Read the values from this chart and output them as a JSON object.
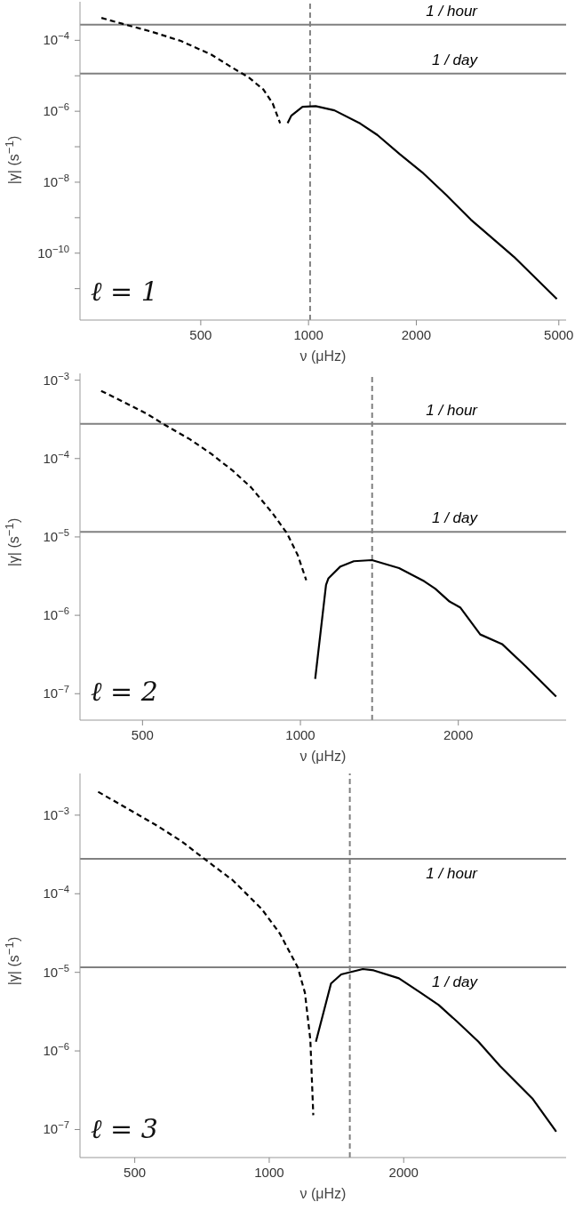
{
  "chart_data": [
    {
      "type": "line",
      "xlabel": "ν (μHz)",
      "ylabel": "|γ| (s$^{−1}$)",
      "log": "xy",
      "marker": "none",
      "xlim": [
        230,
        5240
      ],
      "ylim": [
        1.3e-12,
        0.00122
      ],
      "xticks": [
        500,
        1000,
        2000,
        5000
      ],
      "yticks": [
        {
          "value": 0.0001,
          "label": "10$^{−4}$"
        },
        {
          "value": 1e-05,
          "label": null
        },
        {
          "value": 1e-06,
          "label": "10$^{−6}$"
        },
        {
          "value": 1e-07,
          "label": null
        },
        {
          "value": 1e-08,
          "label": "10$^{−8}$"
        },
        {
          "value": 1e-09,
          "label": null
        },
        {
          "value": 1e-10,
          "label": "10$^{−10}$"
        },
        {
          "value": 1e-11,
          "label": null
        }
      ],
      "series": [
        {
          "color": "#000000",
          "line_style": "dashed",
          "x": [
            264,
            300,
            363,
            440,
            534,
            617,
            679,
            748,
            794,
            833
          ],
          "values": [
            0.000428,
            0.000298,
            0.000177,
            9.6e-05,
            4e-05,
            1.62e-05,
            9.2e-06,
            4.1e-06,
            1.67e-06,
            4.6e-07
          ]
        },
        {
          "color": "#000000",
          "line_style": "solid",
          "x": [
            874,
            895,
            962,
            1047,
            1181,
            1396,
            1556,
            1798,
            2077,
            2427,
            2840,
            3015,
            3483,
            3745,
            4937
          ],
          "values": [
            4.6e-07,
            7.5e-07,
            1.33e-06,
            1.39e-06,
            1.06e-06,
            4.47e-07,
            2.15e-07,
            6.2e-08,
            1.9e-08,
            4.3e-09,
            8.8e-10,
            5.2e-10,
            1.49e-10,
            7.9e-11,
            5.1e-12
          ]
        }
      ],
      "ref_lines": [
        {
          "axis": "y",
          "value": 0.000278,
          "label": "1 / hour",
          "color": "#808080"
        },
        {
          "axis": "y",
          "value": 1.16e-05,
          "label": "1 / day",
          "color": "#808080"
        },
        {
          "axis": "x",
          "value": 1010,
          "color": "#808080",
          "line_style": "dashed"
        }
      ],
      "annotations": [
        "ℓ = 1"
      ]
    },
    {
      "type": "line",
      "xlabel": "ν (μHz)",
      "ylabel": "|γ| (s$^{−1}$)",
      "log": "xy",
      "marker": "none",
      "xlim": [
        380,
        3210
      ],
      "ylim": [
        4.6e-08,
        0.00122
      ],
      "xticks": [
        500,
        1000,
        2000
      ],
      "yticks": [
        {
          "value": 0.001,
          "label": "10$^{−3}$"
        },
        {
          "value": 0.0001,
          "label": "10$^{−4}$"
        },
        {
          "value": 1e-05,
          "label": "10$^{−5}$"
        },
        {
          "value": 1e-06,
          "label": "10$^{−6}$"
        },
        {
          "value": 1e-07,
          "label": "10$^{−7}$"
        }
      ],
      "series": [
        {
          "color": "#000000",
          "line_style": "dashed",
          "x": [
            417,
            462,
            508,
            550,
            615,
            676,
            743,
            805,
            885,
            943,
            989,
            1026
          ],
          "values": [
            0.00073,
            0.00052,
            0.000377,
            0.000272,
            0.000177,
            0.000115,
            7e-05,
            4.3e-05,
            2e-05,
            1.11e-05,
            5.8e-06,
            2.8e-06
          ]
        },
        {
          "color": "#000000",
          "line_style": "solid",
          "x": [
            1067,
            1119,
            1131,
            1192,
            1264,
            1369,
            1542,
            1722,
            1807,
            1924,
            2019,
            2202,
            2423,
            2686,
            3073
          ],
          "values": [
            1.54e-07,
            2.44e-06,
            2.97e-06,
            4.2e-06,
            4.9e-06,
            5.06e-06,
            4e-06,
            2.72e-06,
            2.19e-06,
            1.5e-06,
            1.25e-06,
            5.7e-07,
            4.3e-07,
            2.25e-07,
            9.2e-08
          ]
        }
      ],
      "ref_lines": [
        {
          "axis": "y",
          "value": 0.000278,
          "label": "1 / hour",
          "color": "#808080"
        },
        {
          "axis": "y",
          "value": 1.16e-05,
          "label": "1 / day",
          "color": "#808080"
        },
        {
          "axis": "x",
          "value": 1370,
          "color": "#808080",
          "line_style": "dashed"
        }
      ],
      "annotations": [
        "ℓ = 2"
      ]
    },
    {
      "type": "line",
      "xlabel": "ν (μHz)",
      "ylabel": "|γ| (s$^{−1}$)",
      "log": "xy",
      "marker": "none",
      "xlim": [
        377,
        4620
      ],
      "ylim": [
        4.4e-08,
        0.00339
      ],
      "xticks": [
        500,
        1000,
        2000
      ],
      "yticks": [
        {
          "value": 0.001,
          "label": "10$^{−3}$"
        },
        {
          "value": 0.0001,
          "label": "10$^{−4}$"
        },
        {
          "value": 1e-05,
          "label": "10$^{−5}$"
        },
        {
          "value": 1e-06,
          "label": "10$^{−6}$"
        },
        {
          "value": 1e-07,
          "label": "10$^{−7}$"
        }
      ],
      "series": [
        {
          "color": "#000000",
          "line_style": "dashed",
          "x": [
            414,
            483,
            560,
            638,
            714,
            829,
            962,
            1056,
            1159,
            1202,
            1236,
            1255
          ],
          "values": [
            0.00198,
            0.0012,
            0.00074,
            0.00046,
            0.000281,
            0.000148,
            6.4e-05,
            3.12e-05,
            1.15e-05,
            5.5e-06,
            1.39e-06,
            1.52e-07
          ]
        },
        {
          "color": "#000000",
          "line_style": "solid",
          "x": [
            1272,
            1375,
            1449,
            1620,
            1713,
            1951,
            2183,
            2395,
            2630,
            2941,
            3289,
            3890,
            4390
          ],
          "values": [
            1.31e-06,
            7.2e-06,
            9.4e-06,
            1.1e-05,
            1.06e-05,
            8.4e-06,
            5.5e-06,
            3.84e-06,
            2.38e-06,
            1.31e-06,
            6.4e-07,
            2.45e-07,
            9.4e-08
          ]
        }
      ],
      "ref_lines": [
        {
          "axis": "y",
          "value": 0.000278,
          "label": "1 / hour",
          "color": "#808080"
        },
        {
          "axis": "y",
          "value": 1.16e-05,
          "label": "1 / day",
          "color": "#808080"
        },
        {
          "axis": "x",
          "value": 1515,
          "color": "#808080",
          "line_style": "dashed"
        }
      ],
      "annotations": [
        "ℓ = 3"
      ]
    }
  ]
}
